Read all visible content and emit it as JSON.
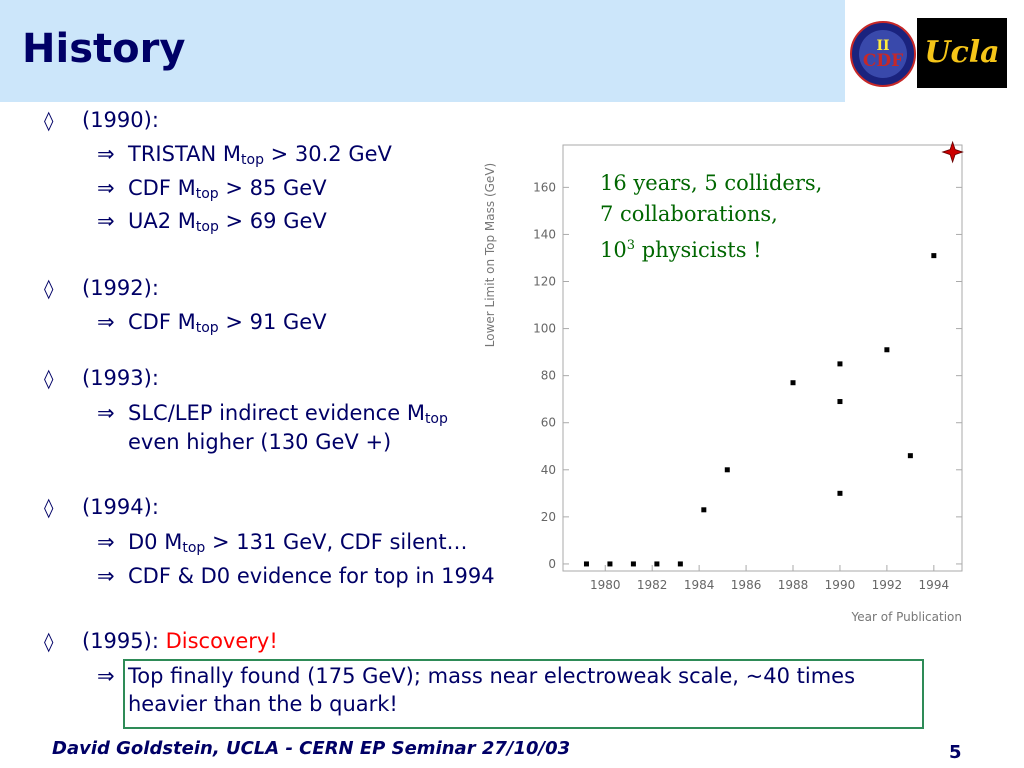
{
  "title": "History",
  "colors": {
    "title_bar": "#cce6fa",
    "text": "#000066",
    "discovery": "#ff0000",
    "annotation": "#006600",
    "box_border": "#2e8b57"
  },
  "logos": {
    "cdf_text": "CDF",
    "cdf_numeral": "II",
    "ucla_text": "Ucla"
  },
  "bullets": [
    {
      "label": "(1990):",
      "items": [
        {
          "pre": "TRISTAN M",
          "sub": "top",
          "post": " > 30.2 GeV"
        },
        {
          "pre": "CDF M",
          "sub": "top",
          "post": " > 85 GeV"
        },
        {
          "pre": "UA2 M",
          "sub": "top",
          "post": " > 69 GeV"
        }
      ]
    },
    {
      "label": "(1992):",
      "items": [
        {
          "pre": "CDF M",
          "sub": "top",
          "post": " > 91 GeV"
        }
      ]
    },
    {
      "label": "(1993):",
      "items": [
        {
          "pre": "SLC/LEP indirect evidence M",
          "sub": "top",
          "line2": "even higher (130 GeV +)"
        }
      ]
    },
    {
      "label": "(1994):",
      "items": [
        {
          "pre": "D0 M",
          "sub": "top",
          "post": " > 131 GeV, CDF silent…"
        },
        {
          "pre": "CDF & D0 evidence for top in 1994"
        }
      ]
    },
    {
      "label": "(1995): ",
      "highlight": "Discovery!",
      "items": [
        {
          "line1": "Top finally found (175 GeV); mass near electroweak scale, ~40 times",
          "line2": "heavier than the b quark!"
        }
      ]
    }
  ],
  "annotation": {
    "line1": "16 years, 5 colliders,",
    "line2": "7 collaborations,",
    "line3_base": "10",
    "line3_sup": "3",
    "line3_rest": " physicists !"
  },
  "footer": {
    "left": "David Goldstein, UCLA - CERN EP Seminar 27/10/03",
    "page": "5"
  },
  "chart_data": {
    "type": "scatter",
    "xlabel": "Year of Publication",
    "ylabel": "Lower Limit on Top Mass (GeV)",
    "xlim": [
      1978.2,
      1995.2
    ],
    "ylim": [
      -3,
      178
    ],
    "xticks": [
      1980,
      1982,
      1984,
      1986,
      1988,
      1990,
      1992,
      1994
    ],
    "yticks": [
      0,
      20,
      40,
      60,
      80,
      100,
      120,
      140,
      160
    ],
    "points": [
      {
        "x": 1979.2,
        "y": 0
      },
      {
        "x": 1980.2,
        "y": 0
      },
      {
        "x": 1981.2,
        "y": 0
      },
      {
        "x": 1982.2,
        "y": 0
      },
      {
        "x": 1983.2,
        "y": 0
      },
      {
        "x": 1984.2,
        "y": 23
      },
      {
        "x": 1985.2,
        "y": 40
      },
      {
        "x": 1988.0,
        "y": 77
      },
      {
        "x": 1990.0,
        "y": 85
      },
      {
        "x": 1990.0,
        "y": 69
      },
      {
        "x": 1990.0,
        "y": 30
      },
      {
        "x": 1992.0,
        "y": 91
      },
      {
        "x": 1993.0,
        "y": 46
      },
      {
        "x": 1994.0,
        "y": 131
      }
    ],
    "star": {
      "x": 1994.8,
      "y": 175
    },
    "grid": false
  }
}
